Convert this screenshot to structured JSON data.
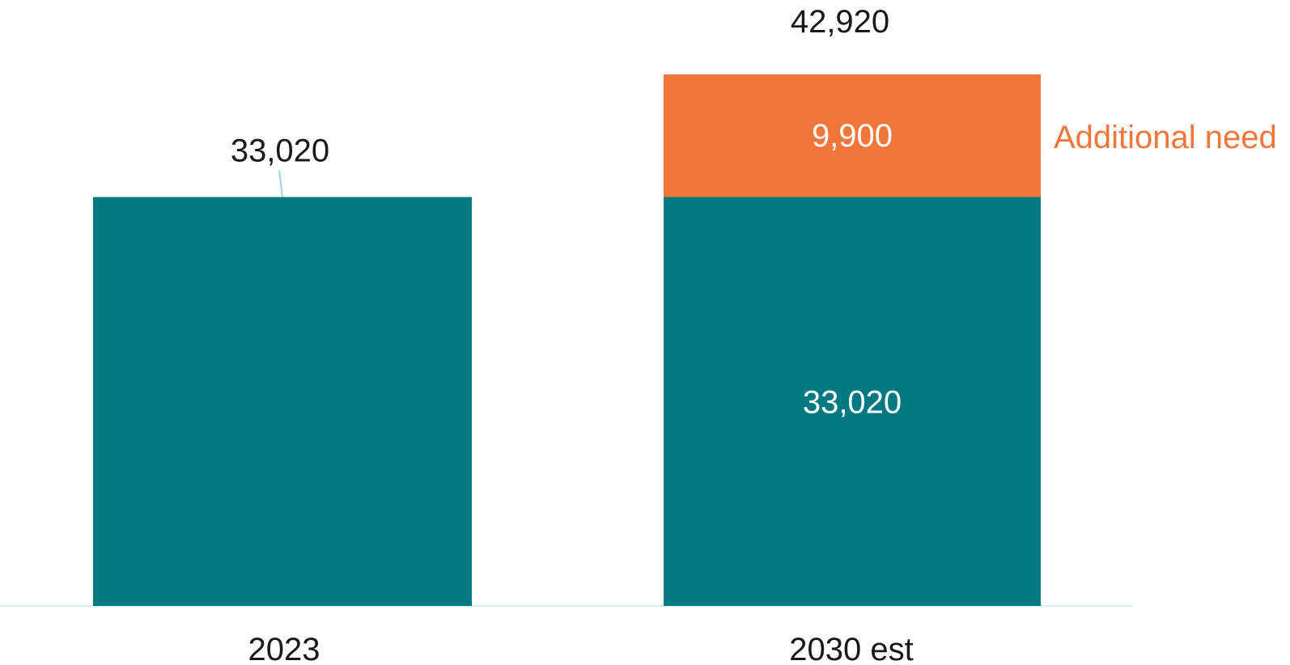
{
  "colors": {
    "base": "#007A80",
    "additional": "#F07639",
    "dark_text": "#1A1A1A",
    "light_text": "#FFFFFF",
    "axis": "#D6EEEE",
    "leader": "#9ED6D8"
  },
  "chart_data": {
    "type": "bar",
    "stacked": true,
    "categories": [
      "2023",
      "2030 est"
    ],
    "series": [
      {
        "values": [
          33020,
          33020
        ],
        "labels": [
          "33,020",
          "33,020"
        ]
      },
      {
        "name": "Additional need",
        "values": [
          0,
          9900
        ],
        "labels": [
          "",
          "9,900"
        ]
      }
    ],
    "totals": [
      33020,
      42920
    ],
    "total_labels": [
      "",
      "42,920"
    ],
    "ylim": [
      0,
      42920
    ],
    "grid": false,
    "legend": "inline-right"
  }
}
